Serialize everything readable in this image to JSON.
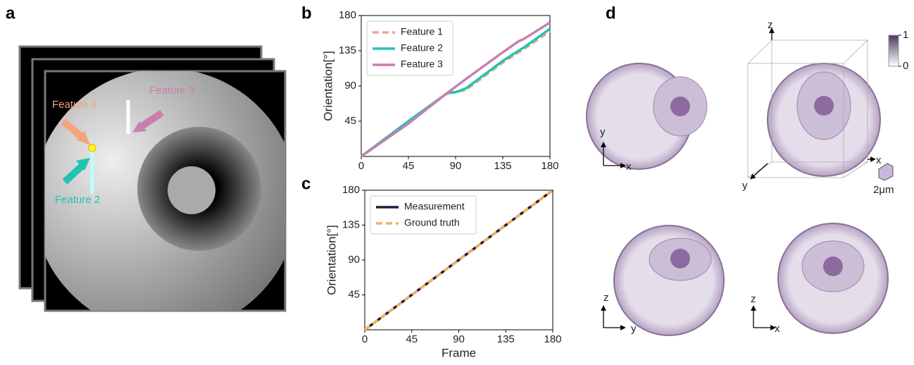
{
  "panel_labels": [
    "a",
    "b",
    "c",
    "d"
  ],
  "panel_a": {
    "features": [
      "Feature 1",
      "Feature 2",
      "Feature 3"
    ]
  },
  "panel_d": {
    "views": [
      {
        "up": "y",
        "right": "x"
      },
      {
        "up": "z",
        "right": "y"
      },
      {
        "up": "z",
        "right": "x"
      }
    ],
    "box_axes": {
      "z": "z",
      "x": "x",
      "y": "y"
    },
    "scale_label": "2μm",
    "colorbar_ticks": [
      0,
      1
    ]
  },
  "chart_data": [
    {
      "type": "line",
      "ylabel": "Orientation[°]",
      "x": [
        0,
        45,
        80,
        85,
        90,
        100,
        135,
        150,
        155,
        180
      ],
      "xlim": [
        0,
        180
      ],
      "ylim": [
        0,
        180
      ],
      "xticks": [
        0,
        45,
        90,
        135,
        180
      ],
      "yticks": [
        45,
        90,
        135,
        180
      ],
      "legend": "upper left",
      "series": [
        {
          "name": "Feature 1",
          "color": "#f5a57f",
          "dash": true,
          "values": [
            0,
            45,
            79,
            81,
            82,
            85,
            120,
            133,
            137,
            160
          ]
        },
        {
          "name": "Feature 2",
          "color": "#22c3b3",
          "dash": false,
          "values": [
            0,
            45,
            79,
            82,
            82,
            87,
            122,
            135,
            139,
            163
          ]
        },
        {
          "name": "Feature 3",
          "color": "#c97fae",
          "dash": false,
          "values": [
            0,
            42,
            79,
            84,
            89,
            99,
            133,
            147,
            150,
            171
          ]
        }
      ]
    },
    {
      "type": "line",
      "ylabel": "Orientation[°]",
      "xlabel": "Frame",
      "x": [
        0,
        180
      ],
      "xlim": [
        0,
        180
      ],
      "ylim": [
        0,
        180
      ],
      "xticks": [
        0,
        45,
        90,
        135,
        180
      ],
      "yticks": [
        45,
        90,
        135,
        180
      ],
      "legend": "upper left",
      "series": [
        {
          "name": "Measurement",
          "color": "#2b1838",
          "dash": false,
          "values": [
            0,
            180
          ]
        },
        {
          "name": "Ground truth",
          "color": "#f0b45a",
          "dash": true,
          "values": [
            0,
            180
          ]
        }
      ]
    }
  ]
}
